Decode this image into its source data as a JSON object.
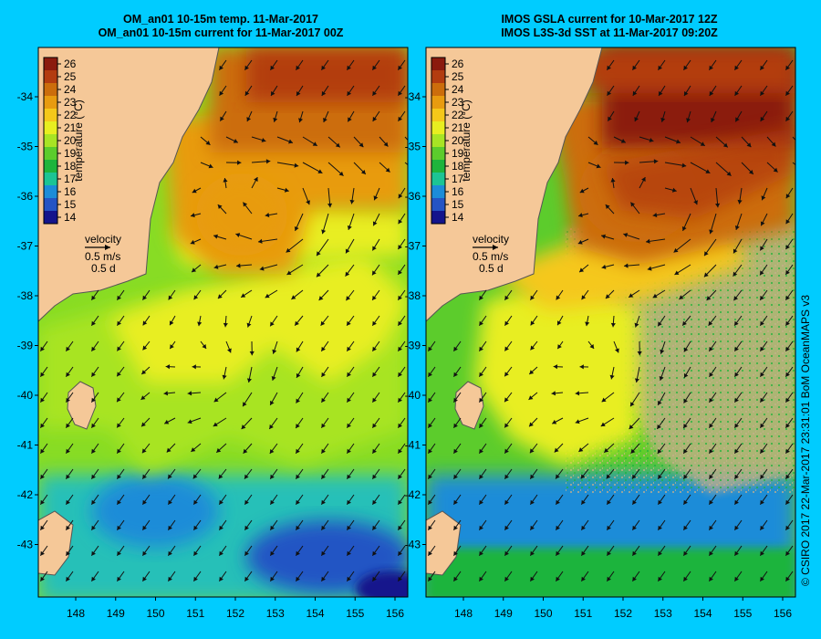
{
  "left_panel": {
    "title_line1": "OM_an01 10-15m temp. 11-Mar-2017",
    "title_line2": "OM_an01 10-15m current for 11-Mar-2017 00Z"
  },
  "right_panel": {
    "title_line1": "IMOS GSLA current for 10-Mar-2017 12Z",
    "title_line2": "IMOS L3S-3d SST at 11-Mar-2017 09:20Z"
  },
  "colorbar": {
    "label": "temperature (°C)",
    "ticks": [
      "26",
      "25",
      "24",
      "23",
      "22",
      "21",
      "20",
      "19",
      "18",
      "17",
      "16",
      "15",
      "14"
    ],
    "colors": [
      "#8b1a0e",
      "#b33c10",
      "#cc6d0c",
      "#e89b10",
      "#f5c81a",
      "#e8ee20",
      "#a8e424",
      "#5ccc2c",
      "#1eb43c",
      "#1cc494",
      "#1c8cd8",
      "#2454c4",
      "#14148c"
    ]
  },
  "velocity_legend": {
    "title": "velocity",
    "speed": "0.5 m/s",
    "time": "0.5 d"
  },
  "axes": {
    "lat_labels": [
      "-34",
      "-35",
      "-36",
      "-37",
      "-38",
      "-39",
      "-40",
      "-41",
      "-42",
      "-43"
    ],
    "lon_labels": [
      "148",
      "149",
      "150",
      "151",
      "152",
      "153",
      "154",
      "155",
      "156"
    ]
  },
  "credit": "© CSIRO 2017   22-Mar-2017 23:31:01 BoM OceanMAPS v3",
  "colors": {
    "background": "#00ccff",
    "land": "#f5c898",
    "missing": "#c8ae8c"
  }
}
